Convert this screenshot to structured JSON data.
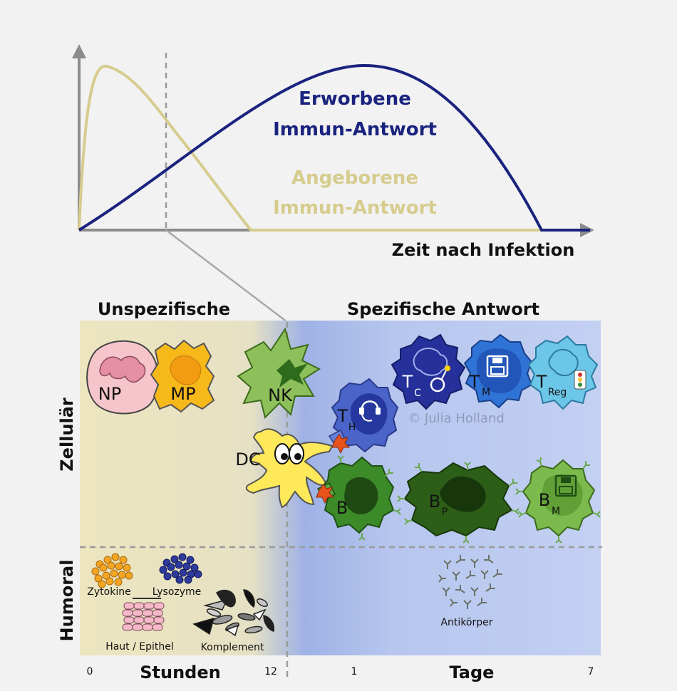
{
  "graph": {
    "adaptive_line1": "Erworbene",
    "adaptive_line2": "Immun-Antwort",
    "innate_line1": "Angeborene",
    "innate_line2": "Immun-Antwort",
    "x_axis_label": "Zeit nach Infektion"
  },
  "panel": {
    "header_left": "Unspezifische",
    "header_right": "Spezifische Antwort",
    "row_cellular": "Zellulär",
    "row_humoral": "Humoral",
    "watermark": "© Julia Holland"
  },
  "cells": {
    "np": "NP",
    "mp": "MP",
    "nk": "NK",
    "dc": "DC",
    "th": "T",
    "th_sub": "H",
    "tc": "T",
    "tc_sub": "C",
    "tm": "T",
    "tm_sub": "M",
    "treg": "T",
    "treg_sub": "Reg",
    "b": "B",
    "bp": "B",
    "bp_sub": "P",
    "bm": "B",
    "bm_sub": "M"
  },
  "humoral": {
    "zytokine": "Zytokine",
    "lysozyme": "Lysozyme",
    "haut": "Haut / Epithel",
    "komplement": "Komplement",
    "antikoerper": "Antikörper"
  },
  "timeline": {
    "t0": "0",
    "hours": "Stunden",
    "t12": "12",
    "t1": "1",
    "days": "Tage",
    "t7": "7"
  },
  "colors": {
    "adaptive": "#1a237e",
    "innate": "#d6cc8e",
    "axis": "#8c8c8c",
    "left_bg": "#ece5bf",
    "right_bg": "#b9c9ef"
  }
}
